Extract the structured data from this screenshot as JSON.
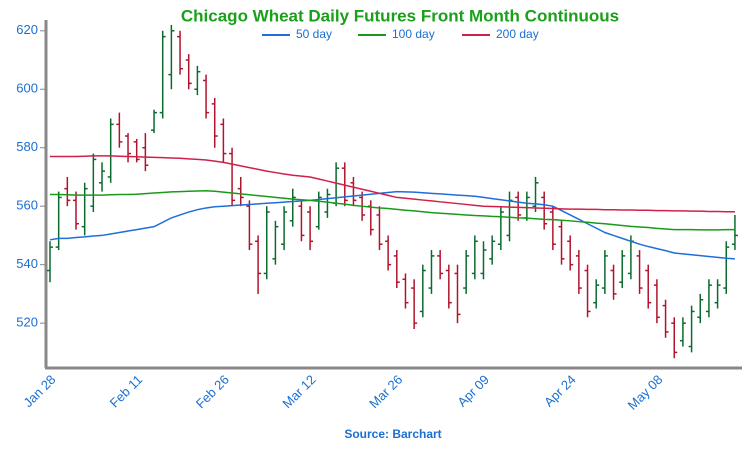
{
  "chart_data": {
    "type": "ohlc",
    "title": "Chicago Wheat Daily Futures Front Month Continuous",
    "source": "Source: Barchart",
    "categories": [
      "Jan 28",
      null,
      null,
      null,
      null,
      null,
      null,
      null,
      null,
      null,
      "Feb 11",
      null,
      null,
      null,
      null,
      null,
      null,
      null,
      null,
      null,
      "Feb 26",
      null,
      null,
      null,
      null,
      null,
      null,
      null,
      null,
      null,
      "Mar 12",
      null,
      null,
      null,
      null,
      null,
      null,
      null,
      null,
      null,
      "Mar 26",
      null,
      null,
      null,
      null,
      null,
      null,
      null,
      null,
      null,
      "Apr 09",
      null,
      null,
      null,
      null,
      null,
      null,
      null,
      null,
      null,
      "Apr 24",
      null,
      null,
      null,
      null,
      null,
      null,
      null,
      null,
      null,
      "May 08",
      null,
      null,
      null,
      null,
      null,
      null,
      null,
      null,
      null
    ],
    "open": [
      538,
      546,
      566,
      562,
      553,
      560,
      568,
      570,
      588,
      584,
      582,
      580,
      586,
      592,
      605,
      618,
      610,
      600,
      603,
      595,
      588,
      578,
      566,
      560,
      548,
      537,
      542,
      547,
      555,
      560,
      558,
      553,
      558,
      561,
      573,
      568,
      563,
      560,
      557,
      548,
      543,
      535,
      532,
      524,
      532,
      543,
      538,
      537,
      532,
      537,
      537,
      542,
      547,
      550,
      563,
      556,
      560,
      563,
      558,
      553,
      548,
      543,
      538,
      527,
      532,
      538,
      534,
      537,
      543,
      538,
      533,
      526,
      520,
      514,
      512,
      522,
      524,
      527,
      532,
      547
    ],
    "high": [
      548,
      565,
      570,
      565,
      568,
      578,
      575,
      590,
      592,
      585,
      583,
      585,
      593,
      620,
      622,
      620,
      612,
      608,
      605,
      597,
      590,
      580,
      570,
      562,
      550,
      560,
      555,
      560,
      566,
      562,
      560,
      565,
      566,
      575,
      575,
      570,
      565,
      562,
      560,
      550,
      545,
      537,
      535,
      540,
      545,
      545,
      540,
      540,
      545,
      550,
      548,
      550,
      560,
      565,
      565,
      565,
      570,
      565,
      560,
      555,
      550,
      545,
      540,
      535,
      545,
      540,
      545,
      550,
      545,
      540,
      535,
      528,
      522,
      522,
      526,
      530,
      535,
      535,
      548,
      557
    ],
    "low": [
      534,
      545,
      560,
      552,
      550,
      558,
      565,
      568,
      580,
      575,
      575,
      572,
      585,
      590,
      600,
      605,
      600,
      598,
      590,
      580,
      575,
      560,
      560,
      545,
      530,
      535,
      540,
      545,
      553,
      548,
      545,
      552,
      556,
      560,
      560,
      560,
      555,
      550,
      545,
      538,
      532,
      525,
      518,
      522,
      530,
      535,
      525,
      520,
      530,
      535,
      535,
      540,
      545,
      548,
      555,
      555,
      558,
      552,
      545,
      540,
      538,
      530,
      522,
      525,
      530,
      528,
      532,
      535,
      530,
      525,
      520,
      515,
      508,
      512,
      510,
      520,
      522,
      525,
      530,
      545
    ],
    "close": [
      546,
      563,
      562,
      554,
      566,
      576,
      572,
      588,
      582,
      578,
      576,
      574,
      592,
      618,
      620,
      607,
      602,
      606,
      592,
      584,
      578,
      562,
      563,
      547,
      537,
      558,
      553,
      558,
      563,
      550,
      548,
      563,
      564,
      573,
      562,
      562,
      557,
      552,
      547,
      540,
      534,
      527,
      520,
      538,
      543,
      537,
      527,
      523,
      543,
      548,
      545,
      548,
      558,
      562,
      557,
      563,
      568,
      554,
      547,
      542,
      540,
      532,
      524,
      533,
      543,
      530,
      543,
      548,
      532,
      527,
      522,
      517,
      510,
      520,
      524,
      528,
      533,
      533,
      546,
      550
    ],
    "up_color": "#0b6b2e",
    "down_color": "#b0142c",
    "series": [
      {
        "name": "50 day",
        "color": "#1f6fd8",
        "values": [
          548.5,
          549,
          549,
          549.3,
          549.5,
          549.8,
          550,
          550.5,
          551,
          551.5,
          552,
          552.5,
          553,
          554.5,
          556,
          557,
          558,
          558.8,
          559.4,
          559.8,
          560,
          560.2,
          560.4,
          560.6,
          560.8,
          561,
          561.2,
          561.4,
          561.6,
          561.8,
          562,
          562.3,
          562.6,
          562.9,
          563.2,
          563.5,
          563.8,
          564.1,
          564.4,
          564.7,
          565,
          564.9,
          564.8,
          564.6,
          564.4,
          564.2,
          564,
          563.8,
          563.6,
          563.4,
          563,
          562.6,
          562.2,
          561.8,
          561.4,
          561,
          560.8,
          560.5,
          560,
          558.5,
          557,
          555.5,
          554,
          552.5,
          551,
          550,
          549,
          548,
          547,
          546.2,
          545.5,
          544.8,
          544,
          543.7,
          543.4,
          543.1,
          542.8,
          542.5,
          542.2,
          542
        ]
      },
      {
        "name": "100 day",
        "color": "#1a9a1a",
        "values": [
          564,
          564,
          563.9,
          563.8,
          563.8,
          563.8,
          563.8,
          563.9,
          564,
          564,
          564.1,
          564.3,
          564.5,
          564.7,
          564.9,
          565,
          565.1,
          565.2,
          565.3,
          565.1,
          564.8,
          564.5,
          564.2,
          563.9,
          563.6,
          563.3,
          563,
          562.7,
          562.4,
          562.2,
          562,
          561.7,
          561.4,
          561,
          560.7,
          560.3,
          560,
          559.7,
          559.4,
          559.2,
          558.9,
          558.6,
          558.4,
          558.1,
          557.8,
          557.6,
          557.4,
          557.2,
          557,
          556.8,
          556.7,
          556.5,
          556.4,
          556.2,
          556,
          555.9,
          555.7,
          555.5,
          555.4,
          555.2,
          555,
          554.7,
          554.5,
          554.2,
          554,
          553.7,
          553.4,
          553.1,
          552.9,
          552.7,
          552.4,
          552.2,
          552,
          552,
          552,
          551.9,
          551.9,
          551.9,
          552,
          552
        ]
      },
      {
        "name": "200 day",
        "color": "#d0204a",
        "values": [
          577,
          577,
          577,
          577,
          577.1,
          577.2,
          577.2,
          577.2,
          577.1,
          577,
          576.9,
          576.8,
          576.7,
          576.6,
          576.5,
          576.4,
          576.2,
          576,
          575.8,
          575.4,
          575,
          574.4,
          573.8,
          573.2,
          572.6,
          572,
          571.5,
          571,
          570.6,
          570.3,
          570,
          569.3,
          568.6,
          567.9,
          567.2,
          566.5,
          565.8,
          565.1,
          564.4,
          563.7,
          563,
          562.7,
          562.4,
          562.1,
          561.8,
          561.5,
          561.2,
          560.9,
          560.6,
          560.3,
          560,
          559.9,
          559.8,
          559.7,
          559.6,
          559.5,
          559.4,
          559.3,
          559.2,
          559.1,
          559,
          559,
          558.9,
          558.9,
          558.8,
          558.8,
          558.7,
          558.7,
          558.6,
          558.6,
          558.5,
          558.5,
          558.4,
          558.4,
          558.3,
          558.3,
          558.2,
          558.2,
          558.1,
          558.1
        ]
      }
    ],
    "ylim": [
      505,
      623
    ],
    "yticks": [
      520,
      540,
      560,
      580,
      600,
      620
    ],
    "grid": false
  }
}
